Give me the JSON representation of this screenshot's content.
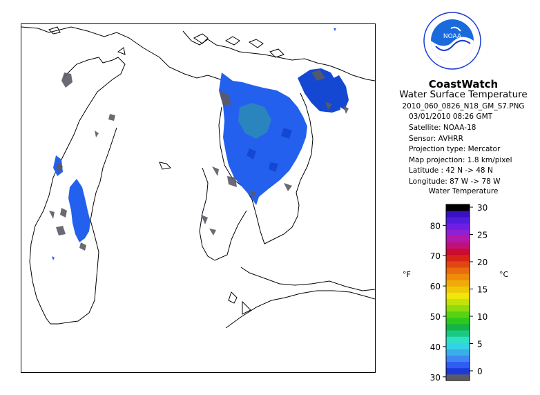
{
  "logo": {
    "text": "NOAA"
  },
  "header": {
    "title": "CoastWatch",
    "subtitle": "Water Surface Temperature",
    "filename": "2010_060_0826_N18_GM_S7.PNG"
  },
  "meta": {
    "datetime": "03/01/2010   08:26 GMT",
    "satellite": "Satellite: NOAA-18",
    "sensor": "Sensor: AVHRR",
    "projection_type": "Projection type:  Mercator",
    "map_projection": "Map projection: 1.8 km/pixel",
    "latitude": "Latitude : 42 N -> 48 N",
    "longitude": "Longitude: 87 W -> 78 W"
  },
  "legend": {
    "title": "Water Temperature",
    "unit_f": "°F",
    "unit_c": "°C",
    "f_ticks": [
      30,
      40,
      50,
      60,
      70,
      80
    ],
    "c_ticks": [
      0,
      5,
      10,
      15,
      20,
      25,
      30
    ],
    "colors": [
      "#5a5a66",
      "#1a3ad8",
      "#2f5cf2",
      "#3f86f5",
      "#3aaee8",
      "#33d2e6",
      "#30e0c6",
      "#19c882",
      "#14b446",
      "#2cc81e",
      "#58d214",
      "#8edc0e",
      "#c2e20a",
      "#f0e60a",
      "#f0c80a",
      "#f0aa0a",
      "#ee8c0a",
      "#ea6a0e",
      "#e04612",
      "#d82418",
      "#cc0c2e",
      "#c0107a",
      "#b418aa",
      "#9020d2",
      "#6e1ee6",
      "#521cdc",
      "#3a10c4",
      "#000000"
    ]
  },
  "map": {
    "water_colors": {
      "deep": "#1448d2",
      "main": "#2460ee",
      "teal": "#2c8cb6",
      "land_cloud": "#5a5a66"
    }
  }
}
